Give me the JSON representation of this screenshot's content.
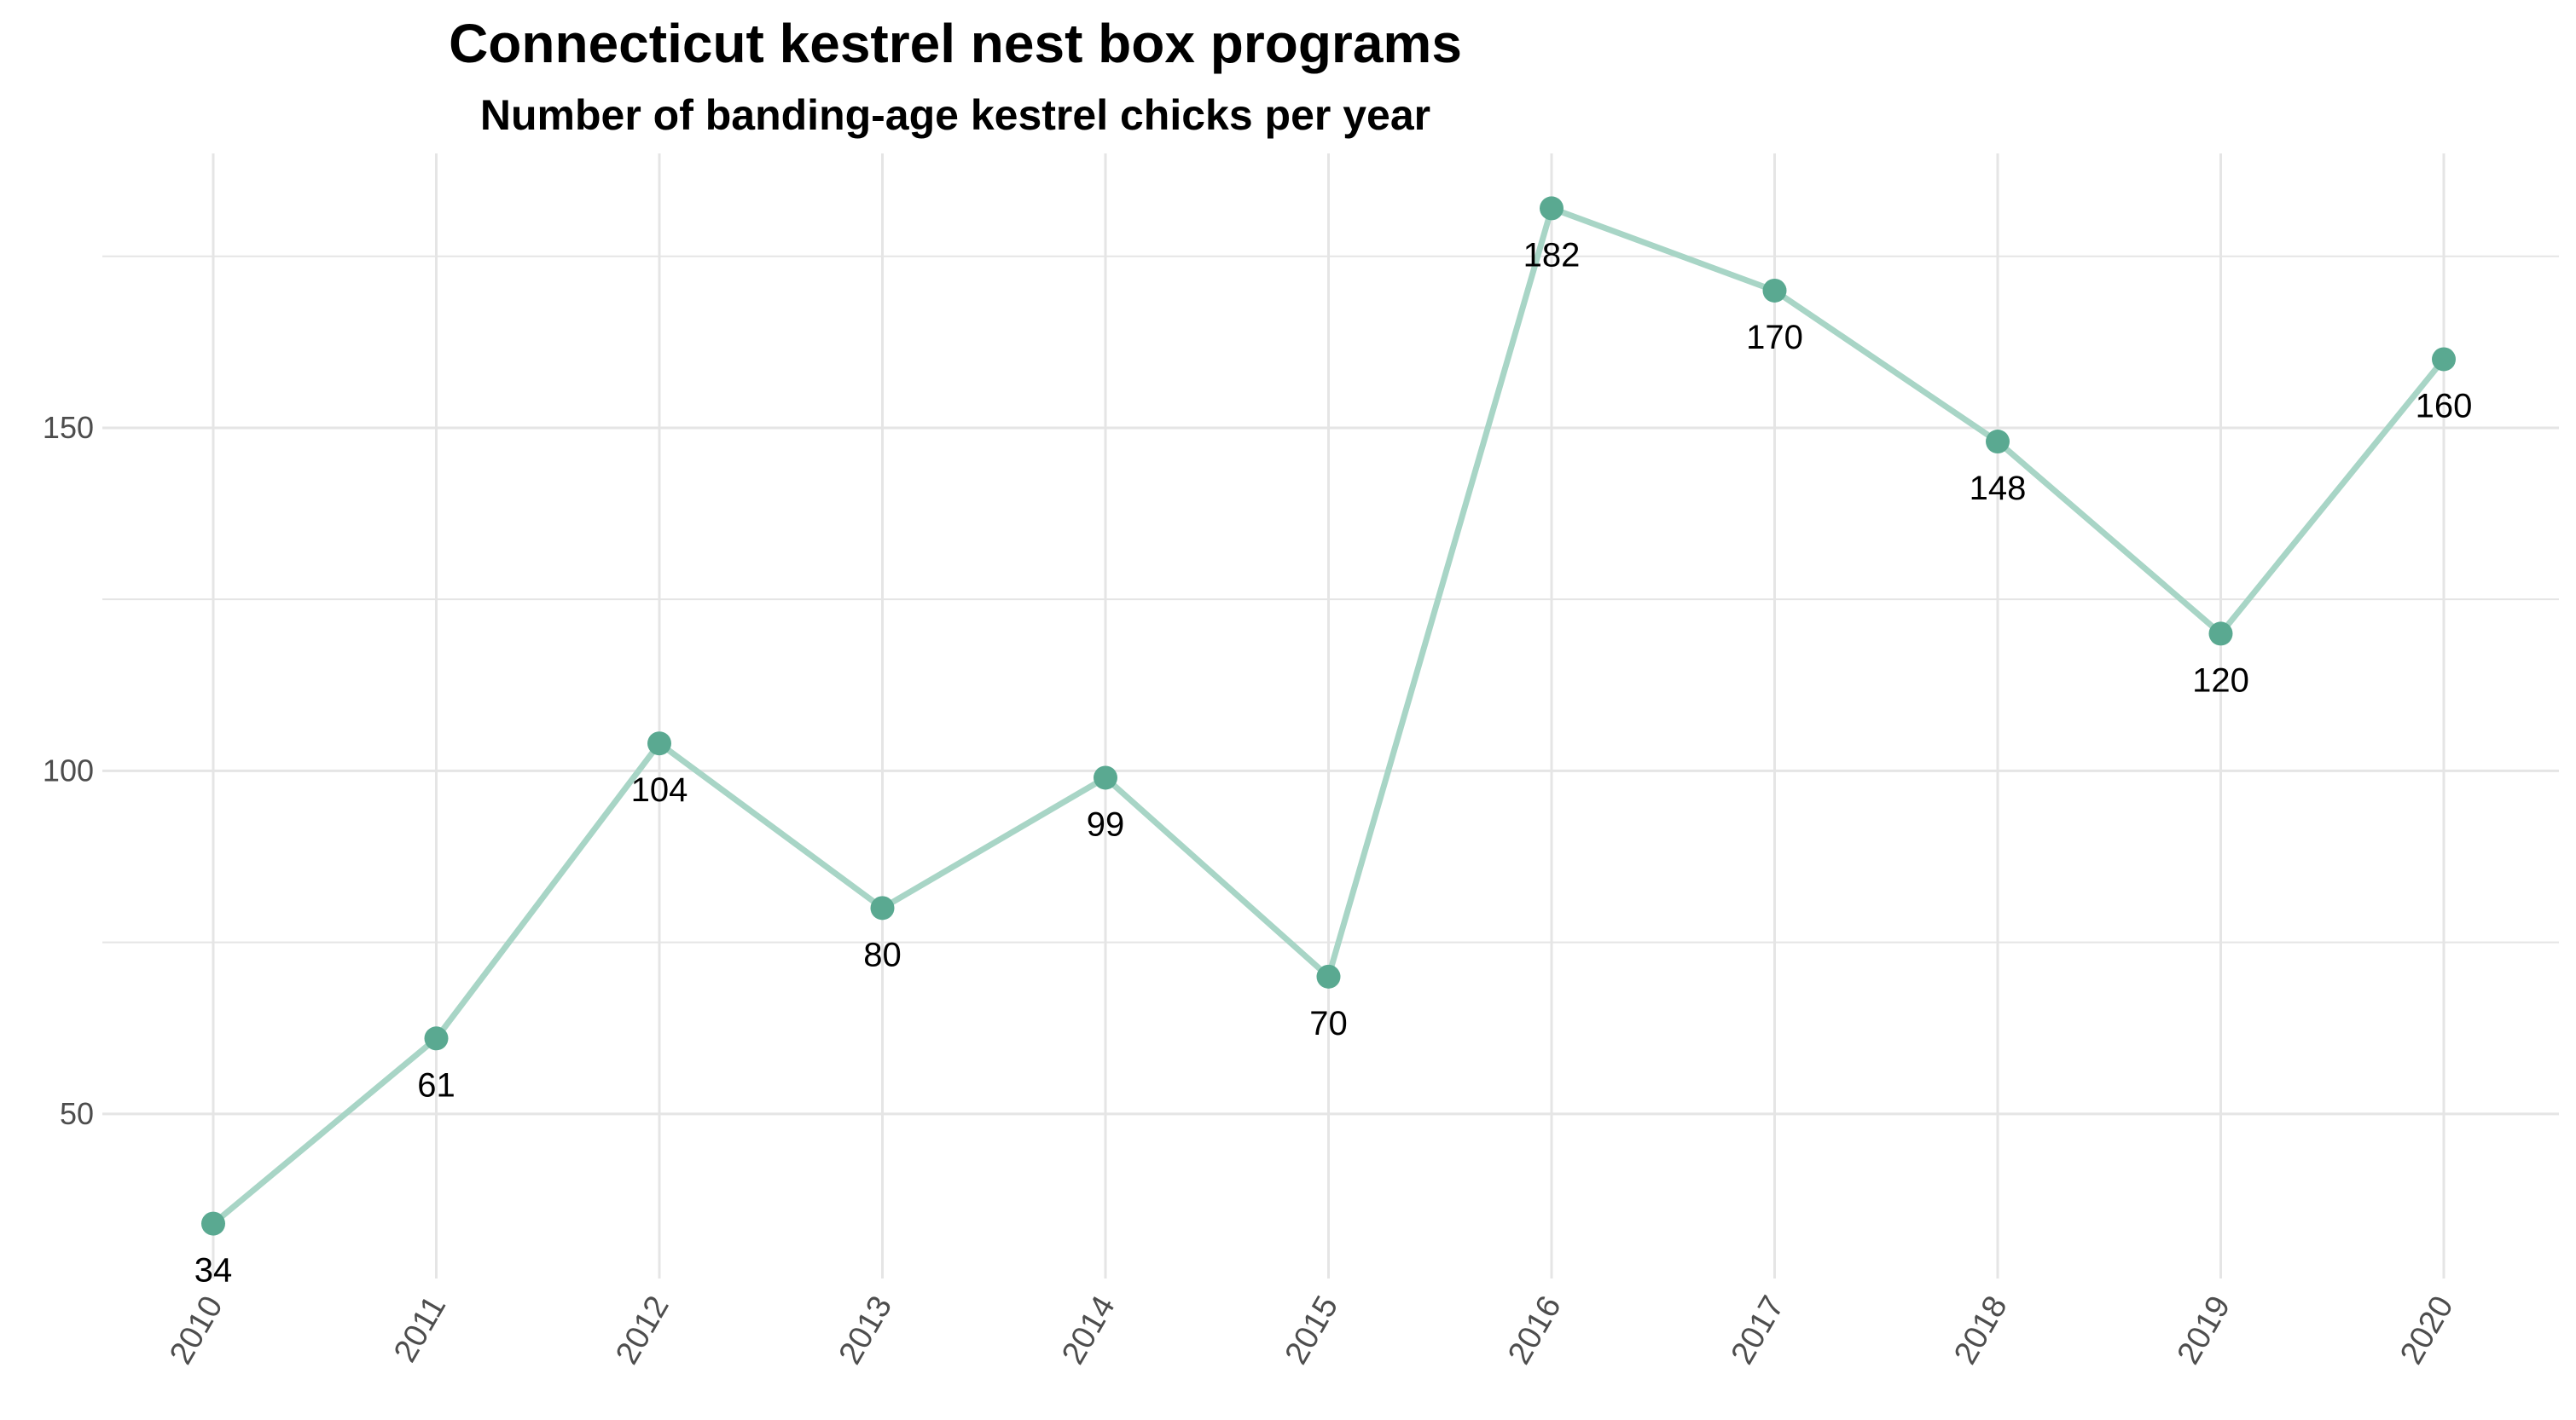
{
  "chart_data": {
    "type": "line",
    "title": "Connecticut kestrel nest box programs",
    "subtitle": "Number of banding-age kestrel chicks per year",
    "xlabel": "",
    "ylabel": "",
    "x": [
      "2010",
      "2011",
      "2012",
      "2013",
      "2014",
      "2015",
      "2016",
      "2017",
      "2018",
      "2019",
      "2020"
    ],
    "values": [
      34,
      61,
      104,
      80,
      99,
      70,
      182,
      170,
      148,
      120,
      160
    ],
    "data_labels": [
      "34",
      "61",
      "104",
      "80",
      "99",
      "70",
      "182",
      "170",
      "148",
      "120",
      "160"
    ],
    "y_ticks": [
      50,
      100,
      150
    ],
    "y_tick_labels": [
      "50",
      "100",
      "150"
    ],
    "ylim": [
      26,
      190
    ],
    "grid": true,
    "legend": "none",
    "colors": {
      "line": "#a8d5c6",
      "point": "#5aa991",
      "grid": "#e5e5e5",
      "axis_text": "#4d4d4d"
    }
  }
}
